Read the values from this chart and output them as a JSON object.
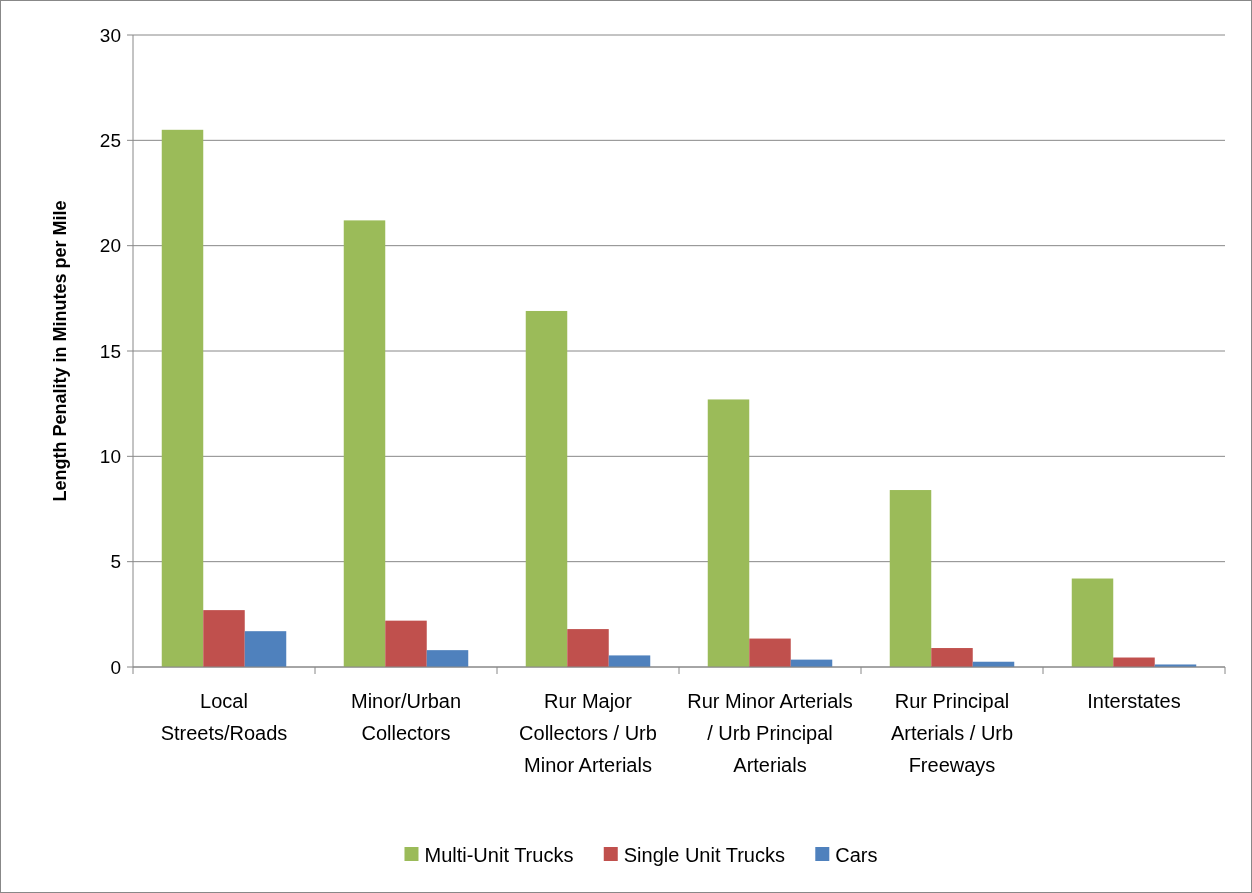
{
  "chart_data": {
    "type": "bar",
    "ylabel": "Length Penality in Minutes per Mile",
    "categories": [
      "Local Streets/Roads",
      "Minor/Urban Collectors",
      "Rur Major Collectors / Urb Minor Arterials",
      "Rur Minor Arterials / Urb Principal Arterials",
      "Rur Principal Arterials / Urb Freeways",
      "Interstates"
    ],
    "series": [
      {
        "name": "Multi-Unit Trucks",
        "color": "#9bbb59",
        "values": [
          25.5,
          21.2,
          16.9,
          12.7,
          8.4,
          4.2
        ]
      },
      {
        "name": "Single Unit Trucks",
        "color": "#c0504d",
        "values": [
          2.7,
          2.2,
          1.8,
          1.35,
          0.9,
          0.45
        ]
      },
      {
        "name": "Cars",
        "color": "#4f81bd",
        "values": [
          1.7,
          0.8,
          0.55,
          0.35,
          0.25,
          0.12
        ]
      }
    ],
    "ylim": [
      0,
      30
    ],
    "yticks": [
      0,
      5,
      10,
      15,
      20,
      25,
      30
    ],
    "grid": "y",
    "legend": "bottom"
  }
}
